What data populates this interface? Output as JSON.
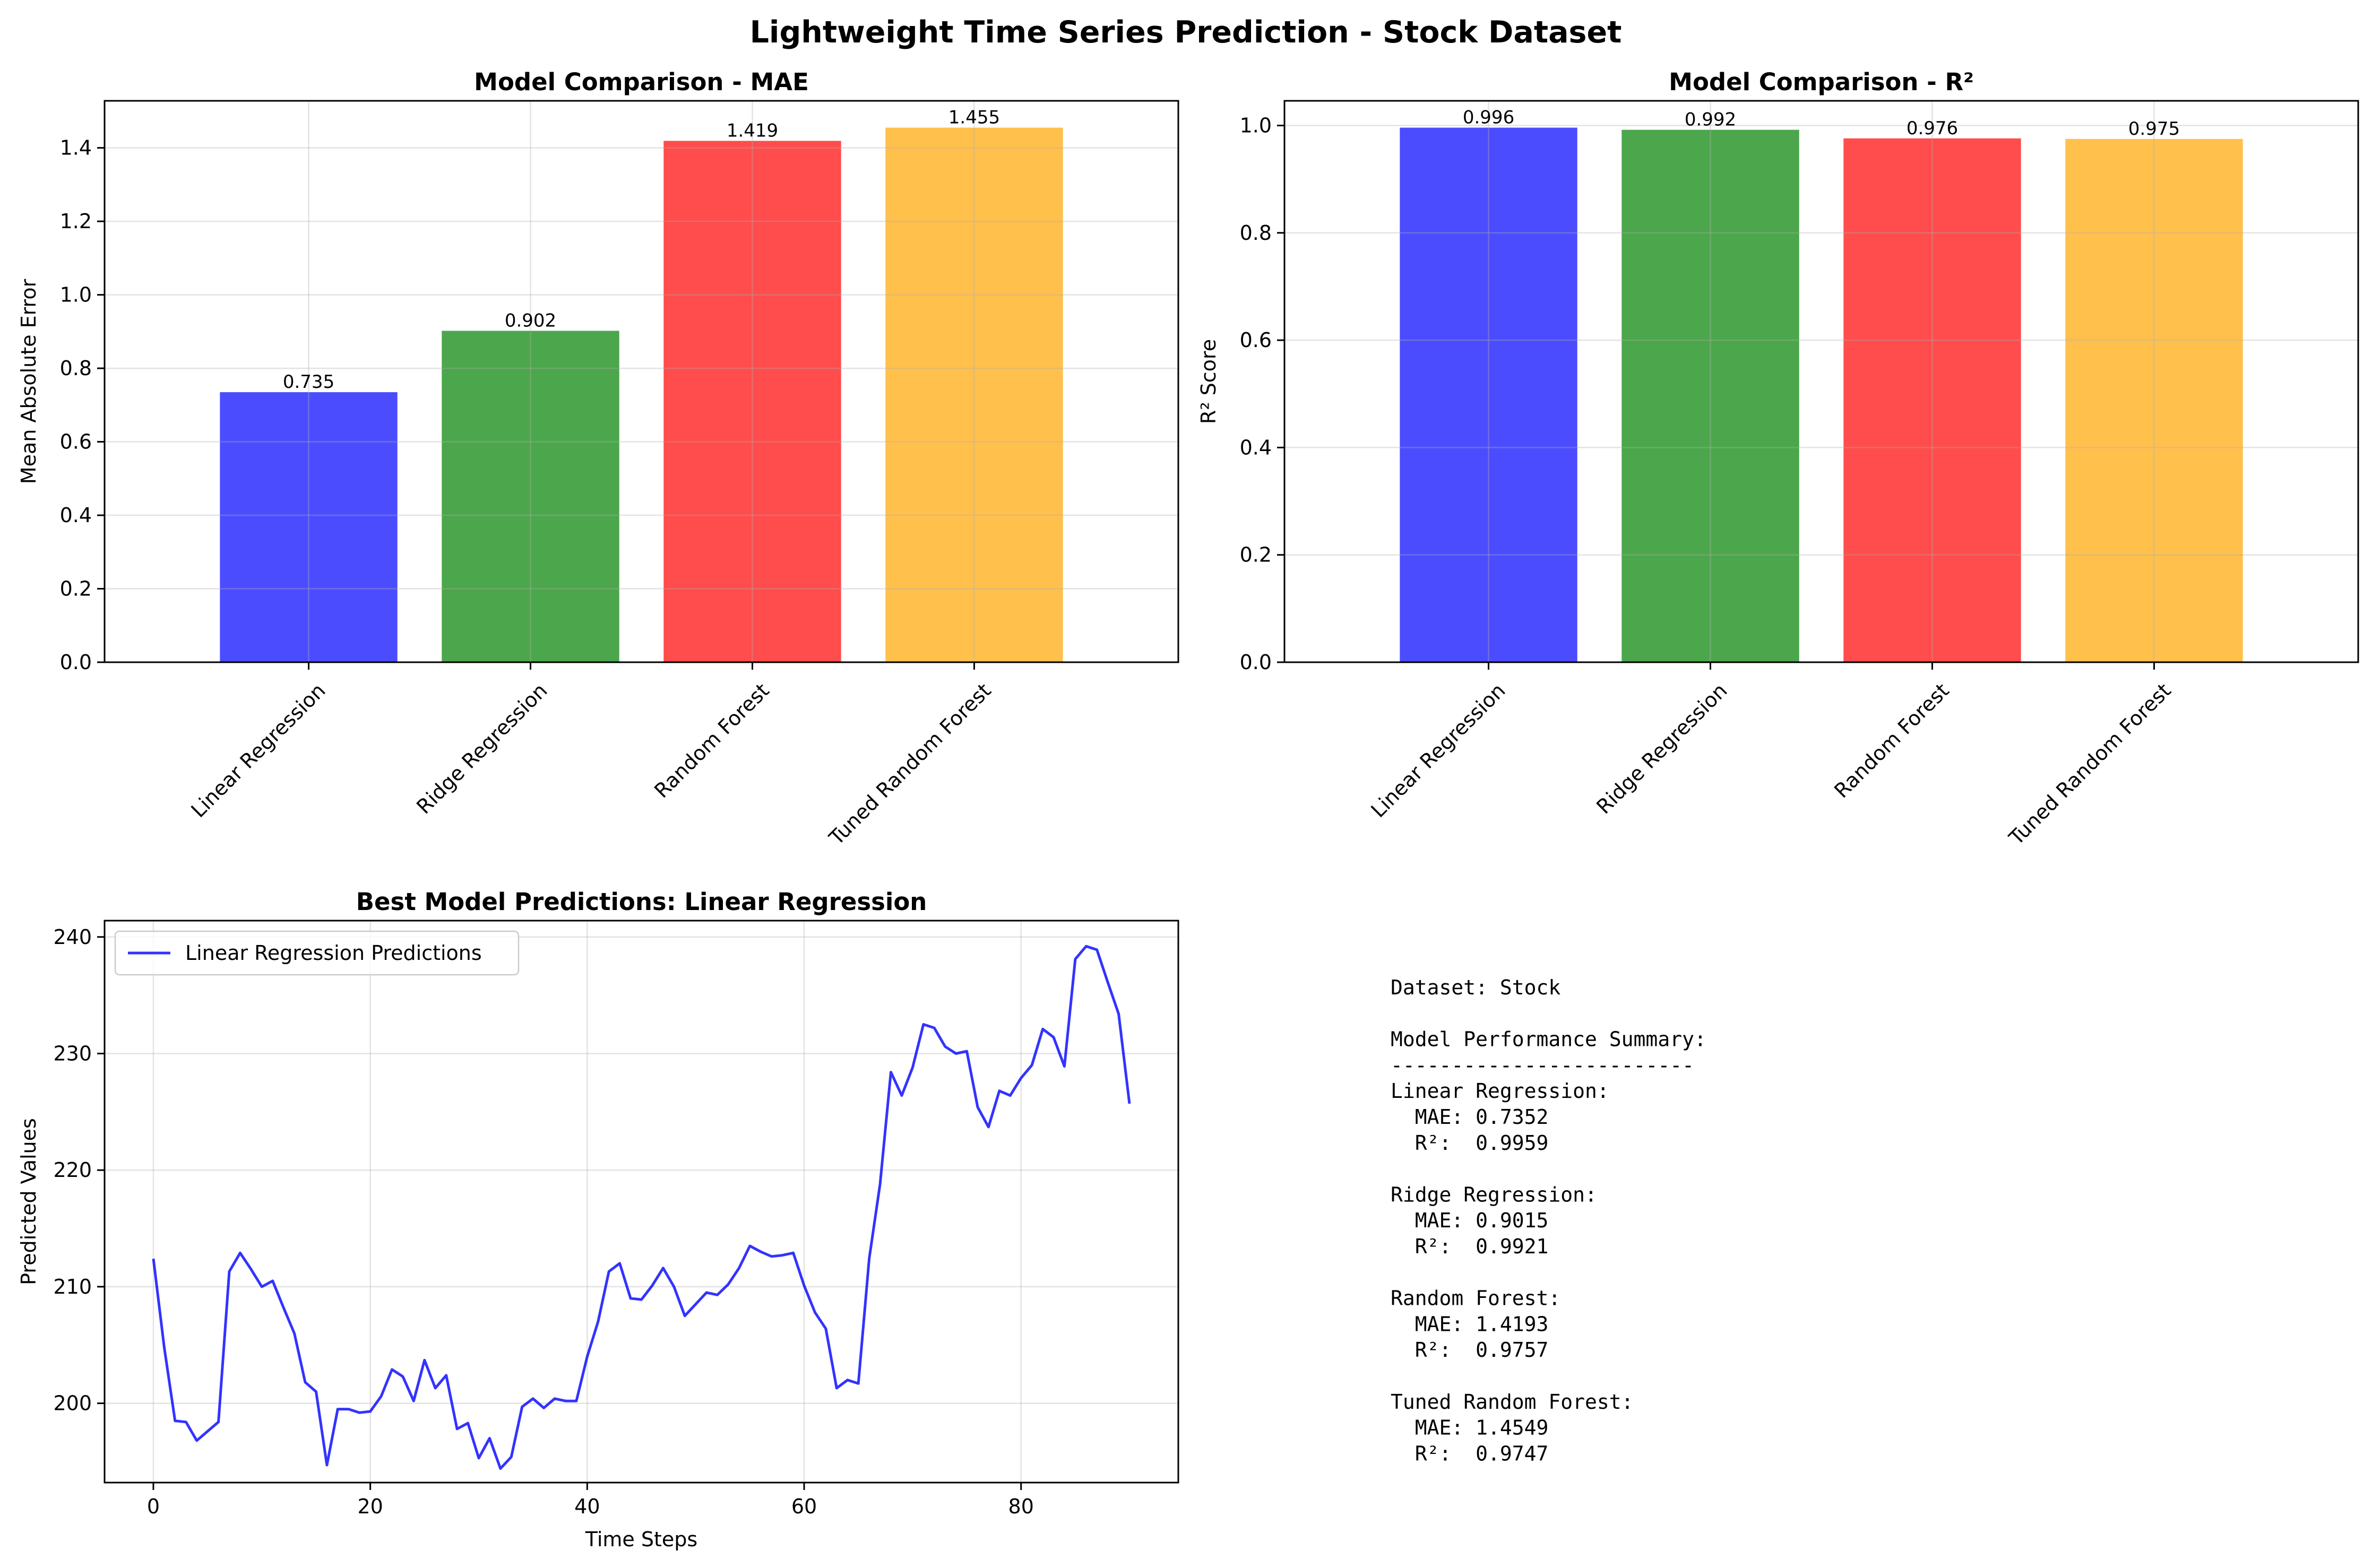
{
  "figure_title": "Lightweight Time Series Prediction - Stock Dataset",
  "colors": {
    "bars": [
      "#0000ff",
      "#008000",
      "#ff0000",
      "#ffa500"
    ],
    "bar_alpha": 0.7,
    "line": "#0000ff"
  },
  "chart_data": [
    {
      "type": "bar",
      "title": "Model Comparison - MAE",
      "xlabel": "",
      "ylabel": "Mean Absolute Error",
      "categories": [
        "Linear Regression",
        "Ridge Regression",
        "Random Forest",
        "Tuned Random Forest"
      ],
      "values": [
        0.735,
        0.902,
        1.419,
        1.455
      ],
      "bar_labels": [
        "0.735",
        "0.902",
        "1.419",
        "1.455"
      ],
      "ylim": [
        0,
        1.528
      ],
      "yticks": [
        0.0,
        0.2,
        0.4,
        0.6,
        0.8,
        1.0,
        1.2,
        1.4
      ],
      "ytick_labels": [
        "0.0",
        "0.2",
        "0.4",
        "0.6",
        "0.8",
        "1.0",
        "1.2",
        "1.4"
      ],
      "grid": true
    },
    {
      "type": "bar",
      "title": "Model Comparison - R²",
      "xlabel": "",
      "ylabel": "R² Score",
      "categories": [
        "Linear Regression",
        "Ridge Regression",
        "Random Forest",
        "Tuned Random Forest"
      ],
      "values": [
        0.996,
        0.992,
        0.976,
        0.975
      ],
      "bar_labels": [
        "0.996",
        "0.992",
        "0.976",
        "0.975"
      ],
      "ylim": [
        0,
        1.046
      ],
      "yticks": [
        0.0,
        0.2,
        0.4,
        0.6,
        0.8,
        1.0
      ],
      "ytick_labels": [
        "0.0",
        "0.2",
        "0.4",
        "0.6",
        "0.8",
        "1.0"
      ],
      "grid": true
    },
    {
      "type": "line",
      "title": "Best Model Predictions: Linear Regression",
      "xlabel": "Time Steps",
      "ylabel": "Predicted Values",
      "xlim": [
        -4.5,
        94.5
      ],
      "ylim": [
        193.2,
        241.4
      ],
      "xticks": [
        0,
        20,
        40,
        60,
        80
      ],
      "yticks": [
        200,
        210,
        220,
        230,
        240
      ],
      "legend_position": "upper-left",
      "grid": true,
      "series": [
        {
          "name": "Linear Regression Predictions",
          "x": [
            0,
            1,
            2,
            3,
            4,
            5,
            6,
            7,
            8,
            9,
            10,
            11,
            12,
            13,
            14,
            15,
            16,
            17,
            18,
            19,
            20,
            21,
            22,
            23,
            24,
            25,
            26,
            27,
            28,
            29,
            30,
            31,
            32,
            33,
            34,
            35,
            36,
            37,
            38,
            39,
            40,
            41,
            42,
            43,
            44,
            45,
            46,
            47,
            48,
            49,
            50,
            51,
            52,
            53,
            54,
            55,
            56,
            57,
            58,
            59,
            60,
            61,
            62,
            63,
            64,
            65,
            66,
            67,
            68,
            69,
            70,
            71,
            72,
            73,
            74,
            75,
            76,
            77,
            78,
            79,
            80,
            81,
            82,
            83,
            84,
            85,
            86,
            87,
            88,
            89,
            90
          ],
          "y": [
            212.4,
            204.8,
            198.5,
            198.4,
            196.8,
            197.6,
            198.4,
            211.3,
            212.9,
            211.5,
            210.0,
            210.5,
            208.2,
            206.0,
            201.8,
            201.0,
            194.7,
            199.5,
            199.5,
            199.2,
            199.3,
            200.6,
            202.9,
            202.3,
            200.2,
            203.7,
            201.3,
            202.4,
            197.8,
            198.3,
            195.3,
            197.0,
            194.4,
            195.4,
            199.7,
            200.4,
            199.6,
            200.4,
            200.2,
            200.2,
            204.0,
            207.0,
            211.3,
            212.0,
            209.0,
            208.9,
            210.1,
            211.6,
            210.0,
            207.5,
            208.5,
            209.5,
            209.3,
            210.2,
            211.6,
            213.5,
            213.0,
            212.6,
            212.7,
            212.9,
            210.1,
            207.8,
            206.4,
            201.3,
            202.0,
            201.7,
            212.4,
            218.8,
            228.4,
            226.4,
            228.8,
            232.5,
            232.2,
            230.6,
            230.0,
            230.2,
            225.4,
            223.7,
            226.8,
            226.4,
            227.9,
            229.0,
            232.1,
            231.4,
            228.9,
            238.1,
            239.2,
            238.9,
            236.1,
            233.4,
            225.7
          ]
        }
      ]
    }
  ],
  "summary": {
    "lines": [
      "Dataset: Stock",
      "",
      "Model Performance Summary:",
      "-------------------------",
      "Linear Regression:",
      "  MAE: 0.7352",
      "  R²:  0.9959",
      "",
      "Ridge Regression:",
      "  MAE: 0.9015",
      "  R²:  0.9921",
      "",
      "Random Forest:",
      "  MAE: 1.4193",
      "  R²:  0.9757",
      "",
      "Tuned Random Forest:",
      "  MAE: 1.4549",
      "  R²:  0.9747"
    ]
  }
}
